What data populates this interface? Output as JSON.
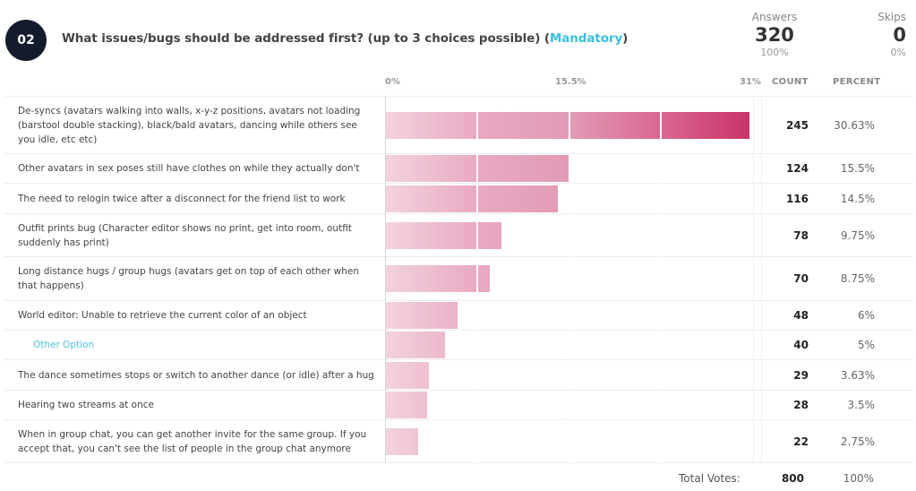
{
  "question": {
    "number": "02",
    "title": "What issues/bugs should be addressed first? (up to 3 choices possible) (",
    "mandatory": "Mandatory",
    "title_end": ")"
  },
  "stats": {
    "answers_label": "Answers",
    "answers_value": "320",
    "answers_pct": "100%",
    "skips_label": "Skips",
    "skips_value": "0",
    "skips_pct": "0%"
  },
  "columns": {
    "count": "COUNT",
    "percent": "PERCENT"
  },
  "footer": {
    "label": "Total Votes:",
    "count": "800",
    "percent": "100%"
  },
  "colors": {
    "bar_start": "#f2d2de",
    "bar_end": "#c9306a",
    "accent": "#3bbfe0",
    "badge": "#141b2d"
  },
  "chart_data": {
    "type": "bar",
    "orientation": "horizontal",
    "title": "What issues/bugs should be addressed first? (up to 3 choices possible) (Mandatory)",
    "xlabel": "",
    "ylabel": "",
    "xlim": [
      0,
      31
    ],
    "x_unit": "%",
    "tick_labels": [
      "0%",
      "15.5%",
      "31%"
    ],
    "tick_values": [
      0,
      15.5,
      31
    ],
    "grid": true,
    "categories": [
      "De-syncs (avatars walking into walls, x-y-z positions, avatars not loading (barstool double stacking), black/bald avatars, dancing while others see you idle, etc etc)",
      "Other avatars in sex poses still have clothes on while they actually don't",
      "The need to relogin twice after a disconnect for the friend list to work",
      "Outfit prints bug (Character editor shows no print, get into room, outfit suddenly has print)",
      "Long distance hugs / group hugs (avatars get on top of each other when that happens)",
      "World editor: Unable to retrieve the current color of an object",
      "Other Option",
      "The dance sometimes stops or switch to another dance (or idle) after a hug",
      "Hearing two streams at once",
      "When in group chat, you can get another invite for the same group. If you accept that, you can't see the list of people in the group chat anymore"
    ],
    "counts": [
      245,
      124,
      116,
      78,
      70,
      48,
      40,
      29,
      28,
      22
    ],
    "count_labels": [
      "245",
      "124",
      "116",
      "78",
      "70",
      "48",
      "40",
      "29",
      "28",
      "22"
    ],
    "values": [
      30.63,
      15.5,
      14.5,
      9.75,
      8.75,
      6,
      5,
      3.63,
      3.5,
      2.75
    ],
    "percent_labels": [
      "30.63%",
      "15.5%",
      "14.5%",
      "9.75%",
      "8.75%",
      "6%",
      "5%",
      "3.63%",
      "3.5%",
      "2.75%"
    ],
    "other_option_index": 6
  }
}
